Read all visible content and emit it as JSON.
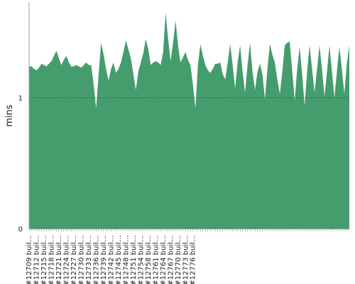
{
  "chart_data": {
    "type": "area",
    "ylabel": "mins",
    "ylim": [
      0,
      1.72
    ],
    "yticks": [
      0,
      1
    ],
    "threshold": 1,
    "fill_color": "#459c6d",
    "threshold_color": "#555555",
    "axis_color": "#999999",
    "shown_tick_labels": [
      "#12709 buil…",
      "#12712 buil…",
      "#12715 buil…",
      "#12718 buil…",
      "#12721 buil…",
      "#12724 buil…",
      "#12727 buil…",
      "#12730 buil…",
      "#12733 buil…",
      "#12736 buil…",
      "#12739 buil…",
      "#12742 buil…",
      "#12745 buil…",
      "#12748 buil…",
      "#12751 buil…",
      "#12754 buil…",
      "#12758 buil…",
      "#12761 buil…",
      "#12764 buil…",
      "#12767 buil…",
      "#12770 buil…",
      "#12773 buil…",
      "#12776 buil…"
    ],
    "series": [
      {
        "values": [
          1.24,
          1.24,
          1.22,
          1.21,
          1.23,
          1.26,
          1.25,
          1.24,
          1.26,
          1.28,
          1.32,
          1.36,
          1.3,
          1.25,
          1.29,
          1.32,
          1.27,
          1.24,
          1.24,
          1.25,
          1.24,
          1.23,
          1.25,
          1.27,
          1.25,
          1.25,
          1.1,
          0.92,
          1.18,
          1.42,
          1.33,
          1.22,
          1.13,
          1.22,
          1.27,
          1.19,
          1.22,
          1.27,
          1.35,
          1.44,
          1.37,
          1.3,
          1.18,
          1.06,
          1.2,
          1.27,
          1.34,
          1.45,
          1.37,
          1.25,
          1.27,
          1.28,
          1.27,
          1.25,
          1.35,
          1.65,
          1.45,
          1.28,
          1.42,
          1.59,
          1.4,
          1.27,
          1.31,
          1.35,
          1.29,
          1.25,
          1.1,
          0.92,
          1.25,
          1.41,
          1.32,
          1.25,
          1.21,
          1.19,
          1.22,
          1.26,
          1.26,
          1.27,
          1.18,
          1.14,
          1.27,
          1.41,
          1.25,
          1.07,
          1.27,
          1.4,
          1.2,
          1.04,
          1.25,
          1.42,
          1.2,
          1.06,
          1.2,
          1.26,
          1.18,
          0.99,
          1.22,
          1.41,
          1.33,
          1.27,
          1.14,
          1.03,
          1.2,
          1.4,
          1.42,
          1.43,
          1.2,
          0.98,
          1.22,
          1.39,
          1.18,
          0.94,
          1.2,
          1.4,
          1.22,
          1.04,
          1.22,
          1.4,
          1.22,
          1.01,
          1.2,
          1.4,
          1.2,
          1.0,
          1.2,
          1.39,
          1.22,
          1.03,
          1.26,
          1.4
        ]
      }
    ]
  }
}
